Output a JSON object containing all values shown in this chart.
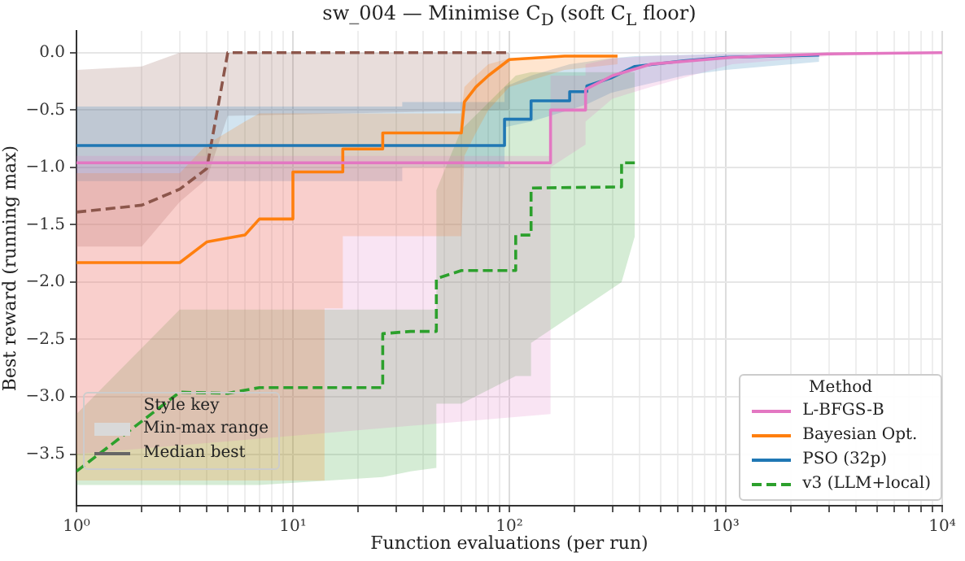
{
  "chart_data": {
    "type": "line",
    "title": "sw_004 — Minimise C$_{D}$ (soft C$_{L}$ floor)",
    "xlabel": "Function evaluations (per run)",
    "ylabel": "Best reward (running max)",
    "log": "x",
    "grid": true,
    "legend": "bottom right",
    "legend_title": "Method",
    "annotations": [
      "Style key",
      "Min-max range",
      "Median best"
    ],
    "xlim": [
      1,
      10000
    ],
    "ylim": [
      -3.95,
      0.19
    ],
    "xticks": [
      {
        "value": 1,
        "label": "10⁰"
      },
      {
        "value": 2,
        "label": null
      },
      {
        "value": 3,
        "label": null
      },
      {
        "value": 4,
        "label": null
      },
      {
        "value": 5,
        "label": null
      },
      {
        "value": 6,
        "label": null
      },
      {
        "value": 7,
        "label": null
      },
      {
        "value": 8,
        "label": null
      },
      {
        "value": 9,
        "label": null
      },
      {
        "value": 10,
        "label": "10¹"
      },
      {
        "value": 20,
        "label": null
      },
      {
        "value": 30,
        "label": null
      },
      {
        "value": 40,
        "label": null
      },
      {
        "value": 50,
        "label": null
      },
      {
        "value": 60,
        "label": null
      },
      {
        "value": 70,
        "label": null
      },
      {
        "value": 80,
        "label": null
      },
      {
        "value": 90,
        "label": null
      },
      {
        "value": 100,
        "label": "10²"
      },
      {
        "value": 200,
        "label": null
      },
      {
        "value": 300,
        "label": null
      },
      {
        "value": 400,
        "label": null
      },
      {
        "value": 500,
        "label": null
      },
      {
        "value": 600,
        "label": null
      },
      {
        "value": 700,
        "label": null
      },
      {
        "value": 800,
        "label": null
      },
      {
        "value": 900,
        "label": null
      },
      {
        "value": 1000,
        "label": "10³"
      },
      {
        "value": 2000,
        "label": null
      },
      {
        "value": 3000,
        "label": null
      },
      {
        "value": 4000,
        "label": null
      },
      {
        "value": 5000,
        "label": null
      },
      {
        "value": 6000,
        "label": null
      },
      {
        "value": 7000,
        "label": null
      },
      {
        "value": 8000,
        "label": null
      },
      {
        "value": 9000,
        "label": null
      },
      {
        "value": 10000,
        "label": "10⁴"
      }
    ],
    "yticks": [
      {
        "value": -3.5,
        "label": "−3.5"
      },
      {
        "value": -3,
        "label": "−3.0"
      },
      {
        "value": -2.5,
        "label": "−2.5"
      },
      {
        "value": -2,
        "label": "−2.0"
      },
      {
        "value": -1.5,
        "label": "−1.5"
      },
      {
        "value": -1,
        "label": "−1.0"
      },
      {
        "value": -0.5,
        "label": "−0.5"
      },
      {
        "value": 0,
        "label": "0.0"
      }
    ],
    "series": [
      {
        "name": "L-BFGS-B",
        "color": "#e377c2",
        "line_style": "solid",
        "x": [
          1,
          155,
          155,
          225,
          225,
          300,
          450,
          1070,
          3000,
          10000
        ],
        "values": [
          -0.96,
          -0.96,
          -0.5,
          -0.5,
          -0.32,
          -0.2,
          -0.1,
          -0.04,
          -0.01,
          0
        ],
        "lower": [
          -3.5,
          -3.15,
          -1.0,
          -0.8,
          -0.6,
          -0.4,
          -0.3,
          -0.1,
          -0.03,
          0
        ],
        "upper": [
          -0.9,
          -0.9,
          -0.2,
          -0.2,
          -0.1,
          -0.05,
          -0.03,
          -0.01,
          0,
          0
        ]
      },
      {
        "name": "Bayesian Opt.",
        "color": "#ff7f0e",
        "line_style": "solid",
        "x": [
          1,
          3,
          4,
          6,
          7,
          10,
          10,
          14,
          14,
          17,
          17,
          26,
          26,
          60,
          62,
          70,
          80,
          100,
          180,
          316
        ],
        "values": [
          -1.83,
          -1.83,
          -1.65,
          -1.59,
          -1.45,
          -1.45,
          -1.04,
          -1.04,
          -1.04,
          -1.04,
          -0.84,
          -0.84,
          -0.7,
          -0.7,
          -0.43,
          -0.3,
          -0.2,
          -0.06,
          -0.03,
          -0.03
        ],
        "lower": [
          -3.73,
          -3.73,
          -3.73,
          -3.73,
          -3.73,
          -3.73,
          -3.73,
          -3.73,
          -2.23,
          -2.23,
          -1.6,
          -1.6,
          -1.6,
          -1.6,
          -0.9,
          -0.7,
          -0.5,
          -0.3,
          -0.15,
          -0.1
        ],
        "upper": [
          -1.05,
          -1.05,
          -0.8,
          -0.6,
          -0.53,
          -0.53,
          -0.53,
          -0.53,
          -0.53,
          -0.53,
          -0.53,
          -0.53,
          -0.53,
          -0.53,
          -0.3,
          -0.2,
          -0.1,
          -0.05,
          -0.02,
          -0.02
        ]
      },
      {
        "name": "PSO (32p)",
        "color": "#1f77b4",
        "line_style": "solid",
        "x": [
          1,
          32,
          32,
          95,
          95,
          126,
          126,
          190,
          190,
          228,
          228,
          295,
          380,
          640,
          1000,
          2700
        ],
        "values": [
          -0.81,
          -0.81,
          -0.81,
          -0.81,
          -0.58,
          -0.58,
          -0.42,
          -0.42,
          -0.34,
          -0.34,
          -0.29,
          -0.22,
          -0.12,
          -0.07,
          -0.04,
          -0.02
        ],
        "lower": [
          -1.12,
          -1.12,
          -1.0,
          -1.0,
          -0.65,
          -0.6,
          -0.6,
          -0.5,
          -0.5,
          -0.45,
          -0.45,
          -0.35,
          -0.3,
          -0.2,
          -0.15,
          -0.08
        ],
        "upper": [
          -0.47,
          -0.47,
          -0.43,
          -0.43,
          -0.3,
          -0.2,
          -0.2,
          -0.1,
          -0.1,
          -0.08,
          -0.08,
          -0.05,
          -0.03,
          -0.02,
          -0.01,
          -0.01
        ]
      },
      {
        "name": "v3 (LLM+local)",
        "color": "#2ca02c",
        "line_style": "dashed",
        "x": [
          1,
          3,
          5,
          7,
          26,
          26,
          35,
          46,
          46,
          60,
          107,
          107,
          126,
          126,
          330,
          330,
          380
        ],
        "values": [
          -3.65,
          -2.96,
          -2.97,
          -2.92,
          -2.92,
          -2.45,
          -2.43,
          -2.43,
          -1.97,
          -1.9,
          -1.9,
          -1.59,
          -1.59,
          -1.18,
          -1.17,
          -0.96,
          -0.96
        ],
        "lower": [
          -3.77,
          -3.77,
          -3.77,
          -3.77,
          -3.7,
          -3.7,
          -3.65,
          -3.62,
          -3.06,
          -3.06,
          -2.82,
          -2.82,
          -2.82,
          -2.53,
          -2.0,
          -2.0,
          -1.6
        ],
        "upper": [
          -3.15,
          -2.24,
          -2.24,
          -2.24,
          -2.24,
          -2.24,
          -2.24,
          -2.24,
          -1.2,
          -0.67,
          -0.2,
          -0.2,
          -0.17,
          -0.17,
          -0.17,
          -0.17,
          -0.17
        ]
      },
      {
        "color": "#8c564b",
        "line_style": "dashed",
        "x": [
          1,
          2,
          3,
          4,
          5,
          100
        ],
        "values": [
          -1.39,
          -1.33,
          -1.19,
          -1.01,
          0,
          0
        ],
        "lower": [
          -1.69,
          -1.69,
          -1.3,
          -1.1,
          -0.55,
          -0.5
        ],
        "upper": [
          -0.15,
          -0.12,
          0,
          0,
          0,
          0
        ]
      }
    ]
  }
}
